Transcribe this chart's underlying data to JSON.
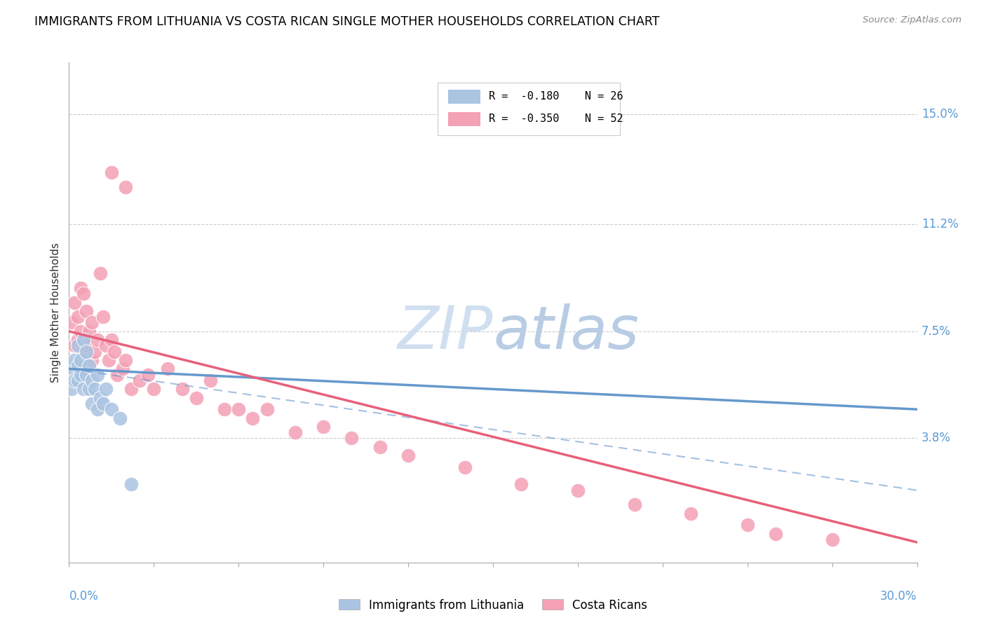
{
  "title": "IMMIGRANTS FROM LITHUANIA VS COSTA RICAN SINGLE MOTHER HOUSEHOLDS CORRELATION CHART",
  "source": "Source: ZipAtlas.com",
  "ylabel": "Single Mother Households",
  "ytick_labels": [
    "15.0%",
    "11.2%",
    "7.5%",
    "3.8%"
  ],
  "ytick_values": [
    0.15,
    0.112,
    0.075,
    0.038
  ],
  "xmin": 0.0,
  "xmax": 0.3,
  "ymin": -0.005,
  "ymax": 0.168,
  "legend1_r": "-0.180",
  "legend1_n": "26",
  "legend2_r": "-0.350",
  "legend2_n": "52",
  "color_blue": "#aac4e2",
  "color_blue_line": "#6699cc",
  "color_pink": "#f4a0b5",
  "color_pink_line": "#e8607a",
  "color_axis_labels": "#5b9bd5",
  "watermark_color": "#d0dff0",
  "lith_x": [
    0.001,
    0.001,
    0.002,
    0.002,
    0.003,
    0.003,
    0.003,
    0.004,
    0.004,
    0.005,
    0.005,
    0.006,
    0.006,
    0.007,
    0.007,
    0.008,
    0.008,
    0.009,
    0.01,
    0.01,
    0.011,
    0.012,
    0.013,
    0.015,
    0.018,
    0.022
  ],
  "lith_y": [
    0.062,
    0.055,
    0.065,
    0.058,
    0.07,
    0.063,
    0.058,
    0.065,
    0.06,
    0.072,
    0.055,
    0.068,
    0.06,
    0.063,
    0.055,
    0.058,
    0.05,
    0.055,
    0.06,
    0.048,
    0.052,
    0.05,
    0.055,
    0.048,
    0.045,
    0.022
  ],
  "cr_x": [
    0.001,
    0.002,
    0.002,
    0.003,
    0.003,
    0.004,
    0.004,
    0.005,
    0.005,
    0.006,
    0.006,
    0.007,
    0.008,
    0.008,
    0.009,
    0.01,
    0.011,
    0.012,
    0.013,
    0.014,
    0.015,
    0.016,
    0.017,
    0.019,
    0.02,
    0.022,
    0.025,
    0.028,
    0.03,
    0.035,
    0.04,
    0.045,
    0.05,
    0.055,
    0.06,
    0.065,
    0.07,
    0.08,
    0.09,
    0.1,
    0.11,
    0.12,
    0.14,
    0.16,
    0.18,
    0.2,
    0.22,
    0.24,
    0.015,
    0.02,
    0.25,
    0.27
  ],
  "cr_y": [
    0.078,
    0.085,
    0.07,
    0.08,
    0.072,
    0.09,
    0.075,
    0.088,
    0.068,
    0.082,
    0.07,
    0.075,
    0.078,
    0.065,
    0.068,
    0.072,
    0.095,
    0.08,
    0.07,
    0.065,
    0.072,
    0.068,
    0.06,
    0.062,
    0.065,
    0.055,
    0.058,
    0.06,
    0.055,
    0.062,
    0.055,
    0.052,
    0.058,
    0.048,
    0.048,
    0.045,
    0.048,
    0.04,
    0.042,
    0.038,
    0.035,
    0.032,
    0.028,
    0.022,
    0.02,
    0.015,
    0.012,
    0.008,
    0.13,
    0.125,
    0.005,
    0.003
  ],
  "lith_line_x0": 0.0,
  "lith_line_x1": 0.3,
  "lith_line_y0": 0.062,
  "lith_line_y1": 0.048,
  "cr_line_x0": 0.0,
  "cr_line_x1": 0.3,
  "cr_line_y0": 0.075,
  "cr_line_y1": 0.002,
  "dash_line_x0": 0.0,
  "dash_line_x1": 0.3,
  "dash_line_y0": 0.062,
  "dash_line_y1": 0.02
}
